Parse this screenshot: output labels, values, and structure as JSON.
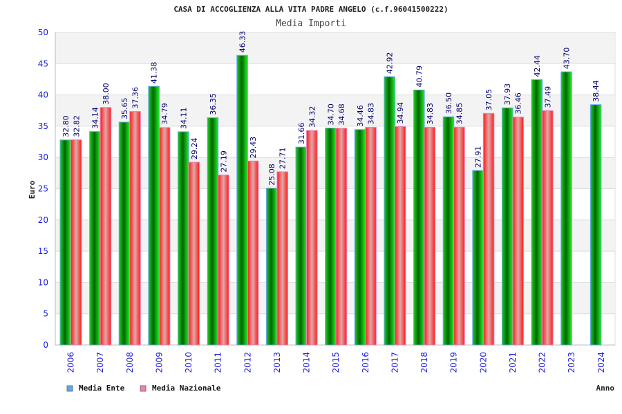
{
  "chart_data": {
    "type": "bar",
    "title": "CASA DI ACCOGLIENZA ALLA VITA PADRE ANGELO (c.f.96041500222)",
    "subtitle": "Media Importi",
    "xlabel": "Anno",
    "ylabel": "Euro",
    "ylim": [
      0,
      50
    ],
    "yticks": [
      0,
      5,
      10,
      15,
      20,
      25,
      30,
      35,
      40,
      45,
      50
    ],
    "grid": true,
    "legend_position": "bottom-left",
    "categories": [
      "2006",
      "2007",
      "2008",
      "2009",
      "2010",
      "2011",
      "2012",
      "2013",
      "2014",
      "2015",
      "2016",
      "2017",
      "2018",
      "2019",
      "2020",
      "2021",
      "2022",
      "2023",
      "2024"
    ],
    "series": [
      {
        "name": "Media Ente",
        "color": "#5ea8ee",
        "values": [
          32.8,
          34.14,
          35.65,
          41.38,
          34.11,
          36.35,
          46.33,
          25.08,
          31.66,
          34.7,
          34.46,
          42.92,
          40.79,
          36.5,
          27.91,
          37.93,
          42.44,
          43.7,
          38.44
        ]
      },
      {
        "name": "Media Nazionale",
        "color": "#f080b8",
        "values": [
          32.82,
          38.0,
          37.36,
          34.79,
          29.24,
          27.19,
          29.43,
          27.71,
          34.32,
          34.68,
          34.83,
          34.94,
          34.83,
          34.85,
          37.05,
          36.46,
          37.49,
          null,
          null
        ]
      }
    ]
  }
}
